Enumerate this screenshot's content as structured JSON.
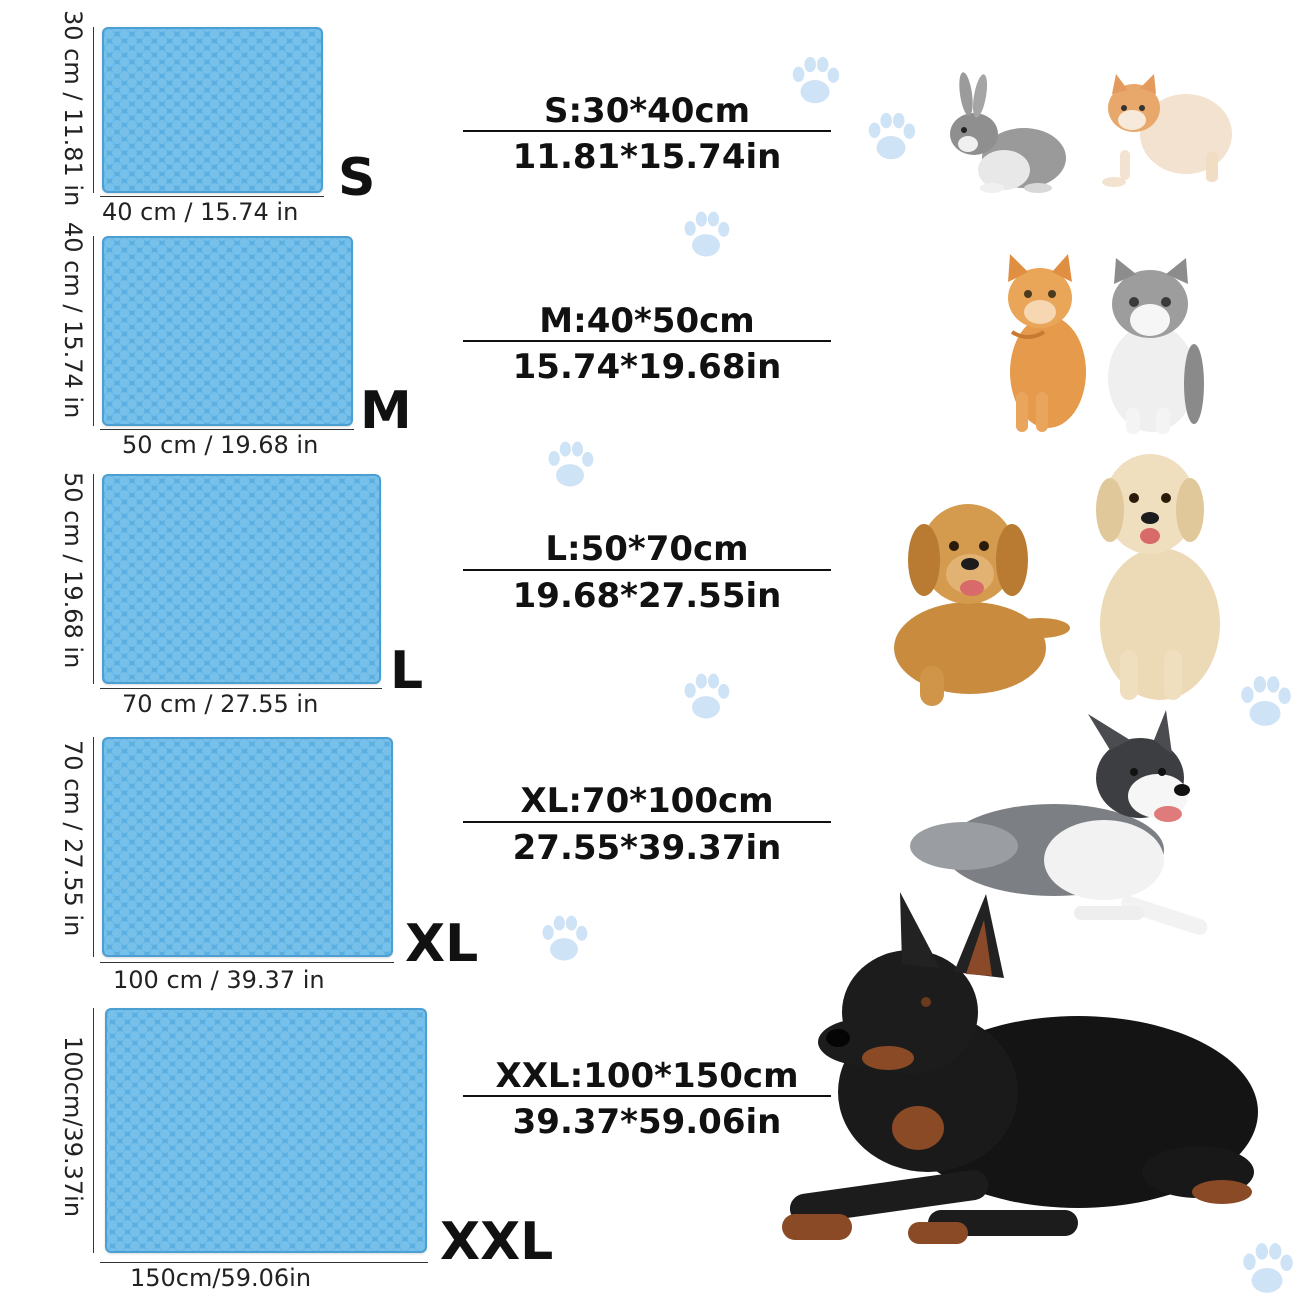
{
  "sizes": [
    {
      "letter": "S",
      "height_label": "30 cm / 11.81 in",
      "width_label": "40 cm / 15.74 in",
      "spec_cm": "S:30*40cm",
      "spec_in": "11.81*15.74in"
    },
    {
      "letter": "M",
      "height_label": "40 cm / 15.74 in",
      "width_label": "50 cm / 19.68 in",
      "spec_cm": "M:40*50cm",
      "spec_in": "15.74*19.68in"
    },
    {
      "letter": "L",
      "height_label": "50 cm / 19.68 in",
      "width_label": "70 cm / 27.55 in",
      "spec_cm": "L:50*70cm",
      "spec_in": "19.68*27.55in"
    },
    {
      "letter": "XL",
      "height_label": "70 cm / 27.55 in",
      "width_label": "100 cm / 39.37 in",
      "spec_cm": "XL:70*100cm",
      "spec_in": "27.55*39.37in"
    },
    {
      "letter": "XXL",
      "height_label": "100cm/39.37in",
      "width_label": "150cm/59.06in",
      "spec_cm": "XXL:100*150cm",
      "spec_in": "39.37*59.06in"
    }
  ],
  "colors": {
    "mat": "#5aaee0",
    "paw": "#cfe3f7",
    "text": "#111111"
  },
  "icons": [
    "paw-print-icon",
    "rabbit-icon",
    "cat-icon",
    "golden-retriever-icon",
    "border-collie-icon",
    "doberman-icon"
  ]
}
